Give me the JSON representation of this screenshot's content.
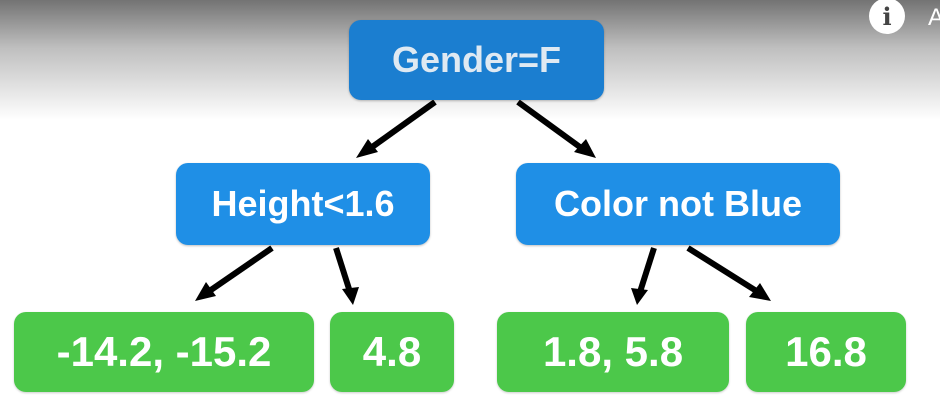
{
  "tree": {
    "root": {
      "label": "Gender=F"
    },
    "left": {
      "label": "Height<1.6"
    },
    "right": {
      "label": "Color not Blue"
    },
    "leaves": [
      "-14.2, -15.2",
      "4.8",
      "1.8, 5.8",
      "16.8"
    ]
  },
  "overlay": {
    "info_icon": "info-icon",
    "info_glyph": "i",
    "edge_glyph": "A"
  },
  "colors": {
    "decision_node": "#1f8fe6",
    "leaf_node": "#4cc84a",
    "arrow": "#000000"
  }
}
